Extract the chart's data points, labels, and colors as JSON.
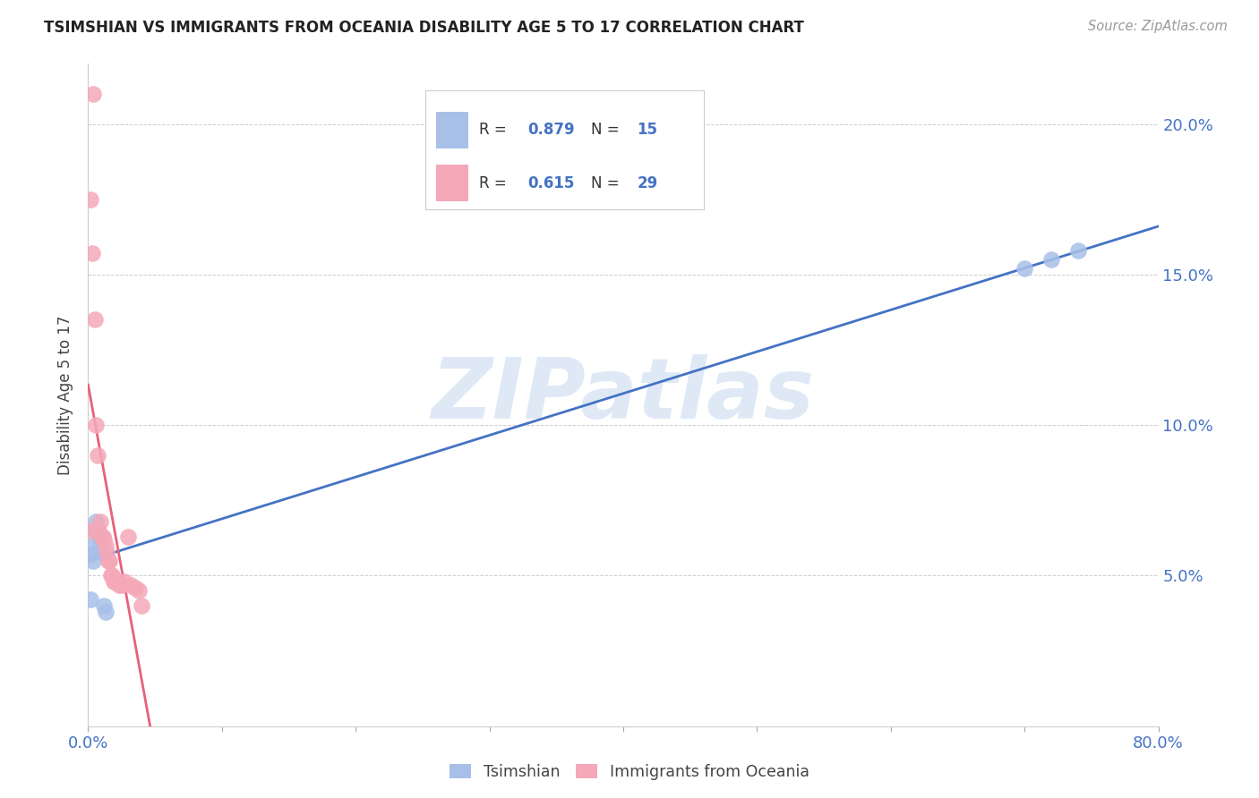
{
  "title": "TSIMSHIAN VS IMMIGRANTS FROM OCEANIA DISABILITY AGE 5 TO 17 CORRELATION CHART",
  "source": "Source: ZipAtlas.com",
  "ylabel": "Disability Age 5 to 17",
  "watermark": "ZIPatlas",
  "background_color": "#ffffff",
  "tsimshian_x": [
    0.001,
    0.002,
    0.003,
    0.004,
    0.005,
    0.006,
    0.007,
    0.008,
    0.009,
    0.01,
    0.012,
    0.013,
    0.7,
    0.72,
    0.74
  ],
  "tsimshian_y": [
    0.057,
    0.042,
    0.06,
    0.055,
    0.065,
    0.068,
    0.065,
    0.063,
    0.06,
    0.058,
    0.04,
    0.038,
    0.152,
    0.155,
    0.158
  ],
  "oceania_x": [
    0.001,
    0.002,
    0.003,
    0.004,
    0.005,
    0.006,
    0.007,
    0.008,
    0.009,
    0.01,
    0.011,
    0.012,
    0.013,
    0.014,
    0.015,
    0.016,
    0.017,
    0.018,
    0.019,
    0.02,
    0.022,
    0.023,
    0.025,
    0.027,
    0.03,
    0.032,
    0.035,
    0.038,
    0.04
  ],
  "oceania_y": [
    0.065,
    0.175,
    0.157,
    0.21,
    0.135,
    0.1,
    0.09,
    0.065,
    0.068,
    0.063,
    0.063,
    0.062,
    0.06,
    0.058,
    0.055,
    0.055,
    0.05,
    0.05,
    0.048,
    0.048,
    0.048,
    0.047,
    0.047,
    0.048,
    0.063,
    0.047,
    0.046,
    0.045,
    0.04
  ],
  "tsimshian_color": "#a8c0e8",
  "oceania_color": "#f4a8b8",
  "tsimshian_line_color": "#4472c4",
  "oceania_line_color": "#e8607a",
  "R_tsimshian": 0.879,
  "N_tsimshian": 15,
  "R_oceania": 0.615,
  "N_oceania": 29,
  "xlim": [
    0.0,
    0.8
  ],
  "ylim_max": 0.22,
  "yticks": [
    0.05,
    0.1,
    0.15,
    0.2
  ],
  "ytick_labels": [
    "5.0%",
    "10.0%",
    "15.0%",
    "20.0%"
  ],
  "xticks": [
    0.0,
    0.1,
    0.2,
    0.3,
    0.4,
    0.5,
    0.6,
    0.7,
    0.8
  ]
}
